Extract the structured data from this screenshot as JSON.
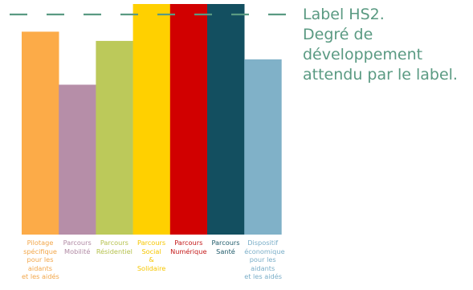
{
  "chart_data": {
    "type": "bar",
    "categories": [
      [
        "Pilotage",
        "spécifique",
        "pour les",
        "aidants",
        "et les aidés"
      ],
      [
        "Parcours",
        "Mobilité"
      ],
      [
        "Parcours",
        "Résidentiel"
      ],
      [
        "Parcours",
        "Social",
        "&",
        "Solidaire"
      ],
      [
        "Parcours",
        "Numérique"
      ],
      [
        "Parcours",
        "Santé"
      ],
      [
        "Dispositif",
        "économique",
        "pour les",
        "aidants",
        "et les aidés"
      ]
    ],
    "values": [
      88,
      65,
      84,
      100,
      100,
      100,
      76
    ],
    "colors": [
      "#fcab48",
      "#b68ea8",
      "#bcc95a",
      "#ffd000",
      "#d10000",
      "#134f60",
      "#80b1c8"
    ],
    "label_colors": [
      "#f2a74b",
      "#b08aa4",
      "#b6c24f",
      "#f6c600",
      "#c41a1a",
      "#1f5a6a",
      "#7aaec8"
    ],
    "ylim": [
      0,
      100
    ],
    "reference_line": {
      "value": 100,
      "color": "#5a9a82",
      "label": [
        "Label HS2.",
        "Degré de",
        "développement",
        "attendu par le label."
      ]
    }
  }
}
